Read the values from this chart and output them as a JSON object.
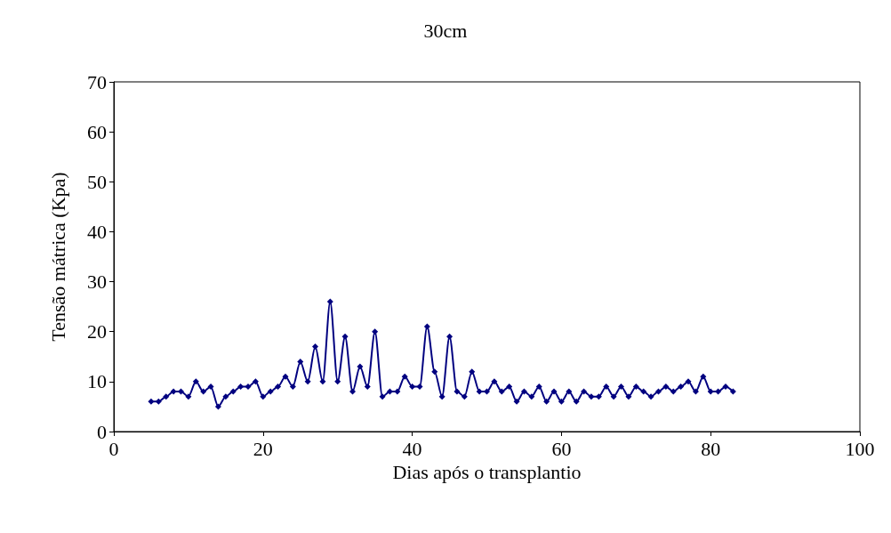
{
  "chart_data": {
    "type": "line",
    "title": "30cm",
    "xlabel": "Dias após o transplantio",
    "ylabel": "Tensão mátrica (Kpa)",
    "x": [
      5,
      6,
      7,
      8,
      9,
      10,
      11,
      12,
      13,
      14,
      15,
      16,
      17,
      18,
      19,
      20,
      21,
      22,
      23,
      24,
      25,
      26,
      27,
      28,
      29,
      30,
      31,
      32,
      33,
      34,
      35,
      36,
      37,
      38,
      39,
      40,
      41,
      42,
      43,
      44,
      45,
      46,
      47,
      48,
      49,
      50,
      51,
      52,
      53,
      54,
      55,
      56,
      57,
      58,
      59,
      60,
      61,
      62,
      63,
      64,
      65,
      66,
      67,
      68,
      69,
      70,
      71,
      72,
      73,
      74,
      75,
      76,
      77,
      78,
      79,
      80,
      81,
      82,
      83
    ],
    "series": [
      {
        "color": "#000080",
        "values": [
          6,
          6,
          7,
          8,
          8,
          7,
          10,
          8,
          9,
          5,
          7,
          8,
          9,
          9,
          10,
          7,
          8,
          9,
          11,
          9,
          14,
          10,
          17,
          10,
          26,
          10,
          19,
          8,
          13,
          9,
          20,
          7,
          8,
          8,
          11,
          9,
          9,
          21,
          12,
          7,
          19,
          8,
          7,
          12,
          8,
          8,
          10,
          8,
          9,
          6,
          8,
          7,
          9,
          6,
          8,
          6,
          8,
          6,
          8,
          7,
          7,
          9,
          7,
          9,
          7,
          9,
          8,
          7,
          8,
          9,
          8,
          9,
          10,
          8,
          11,
          8,
          8,
          9,
          8
        ]
      }
    ],
    "xlim": [
      0,
      100
    ],
    "xticks": [
      0,
      20,
      40,
      60,
      80,
      100
    ],
    "ylim": [
      0,
      70
    ],
    "yticks": [
      0,
      10,
      20,
      30,
      40,
      50,
      60,
      70
    ],
    "grid": false,
    "marker": "diamond",
    "line_style": "solid"
  }
}
